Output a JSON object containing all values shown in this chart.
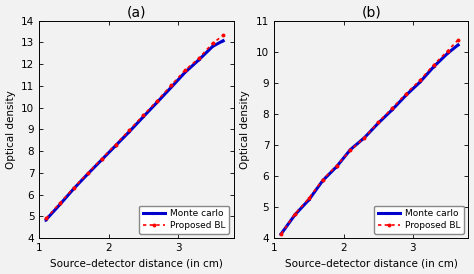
{
  "panel_a": {
    "title": "(a)",
    "xlabel": "Source–detector distance (in cm)",
    "ylabel": "Optical density",
    "xlim": [
      1,
      3.8
    ],
    "ylim": [
      4,
      14
    ],
    "yticks": [
      4,
      5,
      6,
      7,
      8,
      9,
      10,
      11,
      12,
      13,
      14
    ],
    "xticks": [
      1,
      2,
      3
    ],
    "mc_x": [
      1.1,
      1.3,
      1.5,
      1.7,
      1.9,
      2.1,
      2.3,
      2.5,
      2.7,
      2.9,
      3.1,
      3.3,
      3.5,
      3.65
    ],
    "mc_y": [
      4.85,
      5.55,
      6.28,
      6.95,
      7.6,
      8.25,
      8.9,
      9.58,
      10.25,
      10.93,
      11.62,
      12.2,
      12.82,
      13.08
    ],
    "bl_x": [
      1.1,
      1.3,
      1.5,
      1.7,
      1.9,
      2.1,
      2.3,
      2.5,
      2.7,
      2.9,
      3.1,
      3.3,
      3.5,
      3.65
    ],
    "bl_y": [
      4.9,
      5.62,
      6.32,
      6.99,
      7.65,
      8.3,
      8.97,
      9.65,
      10.32,
      11.02,
      11.72,
      12.27,
      12.97,
      13.32
    ]
  },
  "panel_b": {
    "title": "(b)",
    "xlabel": "Source–detector distance (in cm)",
    "ylabel": "Optical density",
    "xlim": [
      1,
      3.8
    ],
    "ylim": [
      4,
      11
    ],
    "yticks": [
      4,
      5,
      6,
      7,
      8,
      9,
      10,
      11
    ],
    "xticks": [
      1,
      2,
      3
    ],
    "mc_x": [
      1.1,
      1.3,
      1.5,
      1.7,
      1.9,
      2.1,
      2.3,
      2.5,
      2.7,
      2.9,
      3.1,
      3.3,
      3.5,
      3.65
    ],
    "mc_y": [
      4.13,
      4.75,
      5.23,
      5.85,
      6.3,
      6.85,
      7.23,
      7.7,
      8.13,
      8.6,
      9.02,
      9.52,
      9.95,
      10.22
    ],
    "bl_x": [
      1.1,
      1.3,
      1.5,
      1.7,
      1.9,
      2.1,
      2.3,
      2.5,
      2.7,
      2.9,
      3.1,
      3.3,
      3.5,
      3.65
    ],
    "bl_y": [
      4.13,
      4.78,
      5.28,
      5.88,
      6.33,
      6.83,
      7.23,
      7.73,
      8.18,
      8.65,
      9.08,
      9.58,
      10.03,
      10.38
    ]
  },
  "mc_color": "#0000cc",
  "bl_color": "#ff0000",
  "legend_mc": "Monte carlo",
  "legend_bl": "Proposed BL",
  "bg_color": "#f2f2f2",
  "title_fontsize": 10,
  "label_fontsize": 7.5,
  "tick_fontsize": 7.5,
  "legend_fontsize": 6.5
}
